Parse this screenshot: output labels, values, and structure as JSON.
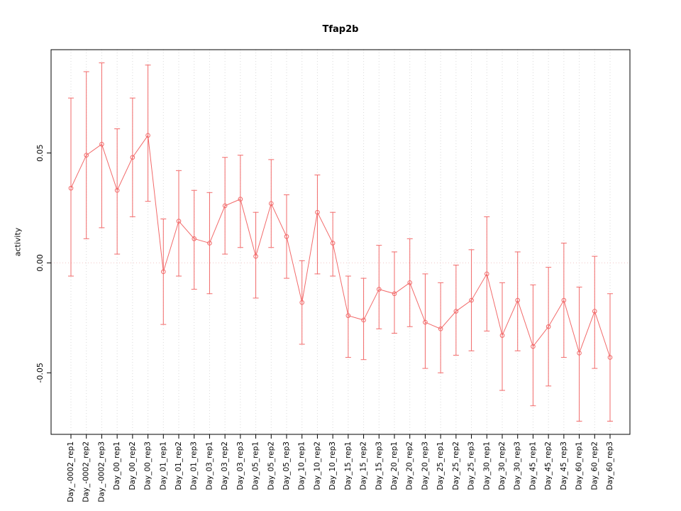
{
  "chart_data": {
    "type": "line",
    "title": "Tfap2b",
    "xlabel": "",
    "ylabel": "activity",
    "categories": [
      "Day_-0002_rep1",
      "Day_-0002_rep2",
      "Day_-0002_rep3",
      "Day_00_rep1",
      "Day_00_rep2",
      "Day_00_rep3",
      "Day_01_rep1",
      "Day_01_rep2",
      "Day_01_rep3",
      "Day_03_rep1",
      "Day_03_rep2",
      "Day_03_rep3",
      "Day_05_rep1",
      "Day_05_rep2",
      "Day_05_rep3",
      "Day_10_rep1",
      "Day_10_rep2",
      "Day_10_rep3",
      "Day_15_rep1",
      "Day_15_rep2",
      "Day_15_rep3",
      "Day_20_rep1",
      "Day_20_rep2",
      "Day_20_rep3",
      "Day_25_rep1",
      "Day_25_rep2",
      "Day_25_rep3",
      "Day_30_rep1",
      "Day_30_rep2",
      "Day_30_rep3",
      "Day_45_rep1",
      "Day_45_rep2",
      "Day_45_rep3",
      "Day_60_rep1",
      "Day_60_rep2",
      "Day_60_rep3"
    ],
    "values": [
      0.034,
      0.049,
      0.054,
      0.033,
      0.048,
      0.058,
      -0.004,
      0.019,
      0.011,
      0.009,
      0.026,
      0.029,
      0.003,
      0.027,
      0.012,
      -0.018,
      0.023,
      0.009,
      -0.024,
      -0.026,
      -0.012,
      -0.014,
      -0.009,
      -0.027,
      -0.03,
      -0.022,
      -0.017,
      -0.005,
      -0.033,
      -0.017,
      -0.038,
      -0.029,
      -0.017,
      -0.041,
      -0.022,
      -0.043
    ],
    "error_low": [
      -0.006,
      0.011,
      0.016,
      0.004,
      0.021,
      0.028,
      -0.028,
      -0.006,
      -0.012,
      -0.014,
      0.004,
      0.007,
      -0.016,
      0.007,
      -0.007,
      -0.037,
      -0.005,
      -0.006,
      -0.043,
      -0.044,
      -0.03,
      -0.032,
      -0.029,
      -0.048,
      -0.05,
      -0.042,
      -0.04,
      -0.031,
      -0.058,
      -0.04,
      -0.065,
      -0.056,
      -0.043,
      -0.072,
      -0.048,
      -0.072
    ],
    "error_high": [
      0.075,
      0.087,
      0.091,
      0.061,
      0.075,
      0.09,
      0.02,
      0.042,
      0.033,
      0.032,
      0.048,
      0.049,
      0.023,
      0.047,
      0.031,
      0.001,
      0.04,
      0.023,
      -0.006,
      -0.007,
      0.008,
      0.005,
      0.011,
      -0.005,
      -0.009,
      -0.001,
      0.006,
      0.021,
      -0.009,
      0.005,
      -0.01,
      -0.002,
      0.009,
      -0.011,
      0.003,
      -0.014
    ],
    "yticks": [
      -0.05,
      0,
      0.05
    ],
    "ytick_labels": [
      "-0.05",
      "0.00",
      "0.05"
    ],
    "ylim": [
      -0.078,
      0.097
    ],
    "grid": "vertical-dotted",
    "zero_line": true,
    "legend": "none",
    "marker": "open-circle",
    "colors": {
      "series": "#f26a6a",
      "grid": "#d9d9d9",
      "zero_line": "#f2c6c6",
      "axis": "#000000",
      "background": "#ffffff"
    }
  }
}
